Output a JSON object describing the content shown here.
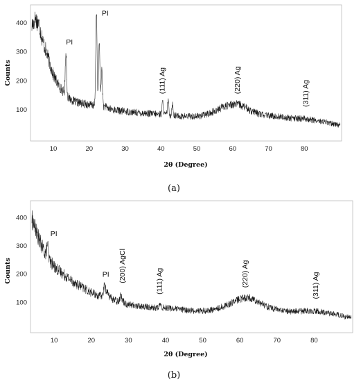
{
  "chart_data": [
    {
      "type": "line",
      "panel_label": "(a)",
      "xlabel": "2θ (Degree)",
      "ylabel": "Counts",
      "xlim": [
        4,
        90
      ],
      "ylim": [
        0,
        450
      ],
      "x_ticks": [
        10,
        20,
        30,
        40,
        50,
        60,
        70,
        80
      ],
      "y_ticks": [
        100,
        200,
        300,
        400
      ],
      "grid": false,
      "series": [
        {
          "x": [
            4,
            5,
            6,
            7,
            8,
            9,
            10,
            11,
            12,
            13,
            14,
            15,
            16,
            17,
            18,
            19,
            20,
            21,
            22,
            23,
            24,
            25,
            26,
            28,
            30,
            32,
            34,
            36,
            38,
            40,
            42,
            44,
            46,
            48,
            50,
            52,
            54,
            56,
            58,
            60,
            62,
            64,
            66,
            68,
            70,
            72,
            74,
            76,
            78,
            80,
            82,
            84,
            86,
            88,
            90
          ],
          "values": [
            390,
            415,
            395,
            340,
            300,
            260,
            220,
            195,
            175,
            160,
            145,
            135,
            128,
            125,
            122,
            120,
            118,
            116,
            115,
            115,
            112,
            108,
            102,
            98,
            95,
            92,
            90,
            88,
            86,
            85,
            82,
            80,
            78,
            78,
            78,
            82,
            90,
            102,
            114,
            120,
            118,
            105,
            92,
            84,
            80,
            78,
            75,
            72,
            70,
            70,
            66,
            62,
            58,
            52,
            48
          ]
        }
      ],
      "peaks": [
        {
          "x": 13.5,
          "value": 300
        },
        {
          "x": 22.0,
          "value": 440
        },
        {
          "x": 22.8,
          "value": 330
        },
        {
          "x": 23.5,
          "value": 240
        },
        {
          "x": 40.5,
          "value": 128
        },
        {
          "x": 42.0,
          "value": 132
        },
        {
          "x": 43.2,
          "value": 120
        }
      ],
      "annotations": [
        {
          "text": "PI",
          "x": 13.5,
          "value": 325,
          "rotate": false
        },
        {
          "text": "PI",
          "x": 23.5,
          "value": 425,
          "rotate": false
        },
        {
          "text": "(111) Ag",
          "x": 41,
          "value": 155,
          "rotate": true
        },
        {
          "text": "(220) Ag",
          "x": 62,
          "value": 155,
          "rotate": true
        },
        {
          "text": "(311) Ag",
          "x": 81,
          "value": 110,
          "rotate": true
        }
      ]
    },
    {
      "type": "line",
      "panel_label": "(b)",
      "xlabel": "2θ (Degree)",
      "ylabel": "Counts",
      "xlim": [
        4,
        90
      ],
      "ylim": [
        0,
        450
      ],
      "x_ticks": [
        10,
        20,
        30,
        40,
        50,
        60,
        70,
        80
      ],
      "y_ticks": [
        100,
        200,
        300,
        400
      ],
      "grid": false,
      "series": [
        {
          "x": [
            4,
            5,
            6,
            7,
            8,
            9,
            10,
            11,
            12,
            13,
            14,
            15,
            16,
            17,
            18,
            19,
            20,
            21,
            22,
            23,
            24,
            25,
            26,
            27,
            28,
            29,
            30,
            32,
            34,
            36,
            38,
            40,
            42,
            44,
            46,
            48,
            50,
            52,
            54,
            56,
            58,
            60,
            62,
            64,
            66,
            68,
            70,
            72,
            74,
            76,
            78,
            80,
            82,
            84,
            86,
            88,
            90
          ],
          "values": [
            395,
            360,
            320,
            290,
            265,
            245,
            228,
            215,
            205,
            195,
            185,
            175,
            165,
            158,
            150,
            142,
            135,
            128,
            122,
            125,
            145,
            118,
            110,
            104,
            115,
            98,
            92,
            88,
            85,
            82,
            80,
            82,
            78,
            75,
            72,
            70,
            70,
            72,
            78,
            88,
            100,
            112,
            118,
            110,
            95,
            82,
            75,
            70,
            68,
            68,
            70,
            70,
            66,
            62,
            58,
            50,
            45
          ]
        }
      ],
      "peaks": [
        {
          "x": 8.2,
          "value": 310
        },
        {
          "x": 23.5,
          "value": 160
        },
        {
          "x": 28.0,
          "value": 128
        },
        {
          "x": 38.5,
          "value": 95
        }
      ],
      "annotations": [
        {
          "text": "PI",
          "x": 9,
          "value": 335,
          "rotate": false
        },
        {
          "text": "PI",
          "x": 23,
          "value": 190,
          "rotate": false
        },
        {
          "text": "(200) AgCl",
          "x": 29,
          "value": 168,
          "rotate": true
        },
        {
          "text": "(111) Ag",
          "x": 39,
          "value": 128,
          "rotate": true
        },
        {
          "text": "(220) Ag",
          "x": 62,
          "value": 152,
          "rotate": true
        },
        {
          "text": "(311) Ag",
          "x": 81,
          "value": 112,
          "rotate": true
        }
      ]
    }
  ]
}
